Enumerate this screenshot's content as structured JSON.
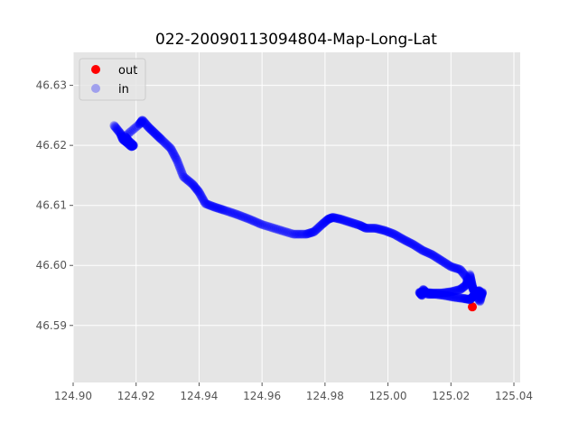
{
  "chart_data": {
    "type": "scatter",
    "title": "022-20090113094804-Map-Long-Lat",
    "xlabel": "",
    "ylabel": "",
    "xlim": [
      124.9,
      125.042
    ],
    "ylim": [
      46.5805,
      46.6355
    ],
    "x_ticks": [
      124.9,
      124.92,
      124.94,
      124.96,
      124.98,
      125.0,
      125.02,
      125.04
    ],
    "x_tick_labels": [
      "124.90",
      "124.92",
      "124.94",
      "124.96",
      "124.98",
      "125.00",
      "125.02",
      "125.04"
    ],
    "y_ticks": [
      46.59,
      46.6,
      46.61,
      46.62,
      46.63
    ],
    "y_tick_labels": [
      "46.59",
      "46.60",
      "46.61",
      "46.62",
      "46.63"
    ],
    "grid": true,
    "legend_position": "top-left",
    "series": [
      {
        "name": "out",
        "color": "#ff0000",
        "points": [
          [
            125.0268,
            46.5931
          ]
        ]
      },
      {
        "name": "in",
        "color": "#0000ff",
        "points": [
          [
            124.913,
            46.6233
          ],
          [
            124.915,
            46.622
          ],
          [
            124.9158,
            46.621
          ],
          [
            124.917,
            46.6205
          ],
          [
            124.9185,
            46.6198
          ],
          [
            124.9192,
            46.62
          ],
          [
            124.9175,
            46.6208
          ],
          [
            124.9165,
            46.6215
          ],
          [
            124.921,
            46.6235
          ],
          [
            124.922,
            46.6242
          ],
          [
            124.924,
            46.623
          ],
          [
            124.926,
            46.622
          ],
          [
            124.928,
            46.621
          ],
          [
            124.931,
            46.6195
          ],
          [
            124.933,
            46.6175
          ],
          [
            124.935,
            46.6148
          ],
          [
            124.938,
            46.6135
          ],
          [
            124.94,
            46.6122
          ],
          [
            124.942,
            46.6103
          ],
          [
            124.945,
            46.6097
          ],
          [
            124.948,
            46.6092
          ],
          [
            124.952,
            46.6085
          ],
          [
            124.956,
            46.6077
          ],
          [
            124.96,
            46.6068
          ],
          [
            124.965,
            46.606
          ],
          [
            124.97,
            46.6052
          ],
          [
            124.974,
            46.6052
          ],
          [
            124.9765,
            46.6056
          ],
          [
            124.979,
            46.6068
          ],
          [
            124.981,
            46.6077
          ],
          [
            124.9825,
            46.608
          ],
          [
            124.985,
            46.6077
          ],
          [
            124.988,
            46.6072
          ],
          [
            124.991,
            46.6067
          ],
          [
            124.993,
            46.6062
          ],
          [
            124.996,
            46.6062
          ],
          [
            124.999,
            46.6058
          ],
          [
            125.002,
            46.6052
          ],
          [
            125.005,
            46.6043
          ],
          [
            125.008,
            46.6035
          ],
          [
            125.011,
            46.6025
          ],
          [
            125.014,
            46.6018
          ],
          [
            125.017,
            46.6008
          ],
          [
            125.02,
            46.5998
          ],
          [
            125.023,
            46.5993
          ],
          [
            125.0253,
            46.5978
          ],
          [
            125.025,
            46.5968
          ],
          [
            125.023,
            46.596
          ],
          [
            125.02,
            46.5956
          ],
          [
            125.017,
            46.5954
          ],
          [
            125.014,
            46.5954
          ],
          [
            125.0115,
            46.5955
          ],
          [
            125.01,
            46.5955
          ],
          [
            125.0108,
            46.595
          ],
          [
            125.0112,
            46.596
          ],
          [
            125.0126,
            46.5952
          ],
          [
            125.015,
            46.5952
          ],
          [
            125.018,
            46.595
          ],
          [
            125.021,
            46.5947
          ],
          [
            125.024,
            46.5945
          ],
          [
            125.026,
            46.5943
          ],
          [
            125.027,
            46.5948
          ],
          [
            125.028,
            46.5955
          ],
          [
            125.029,
            46.5958
          ],
          [
            125.0295,
            46.595
          ],
          [
            125.03,
            46.5955
          ],
          [
            125.0292,
            46.594
          ],
          [
            125.0275,
            46.5955
          ],
          [
            125.0268,
            46.5965
          ],
          [
            125.026,
            46.5985
          ],
          [
            125.027,
            46.596
          ]
        ]
      }
    ]
  }
}
